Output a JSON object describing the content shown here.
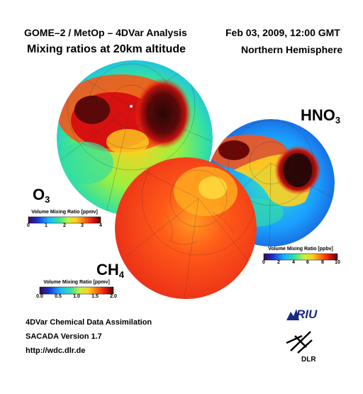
{
  "header": {
    "title_left": "GOME–2 / MetOp – 4DVar Analysis",
    "subtitle_left": "Mixing ratios at 20km altitude",
    "title_right": "Feb 03, 2009, 12:00 GMT",
    "subtitle_right": "Northern Hemisphere"
  },
  "species": {
    "o3": {
      "base": "O",
      "sub": "3"
    },
    "hno3": {
      "base": "HNO",
      "sub": "3"
    },
    "ch4": {
      "base": "CH",
      "sub": "4"
    }
  },
  "colorbars": {
    "o3": {
      "title": "Volume Mixing Ratio [ppmv]",
      "ticks": [
        "0",
        "1",
        "2",
        "3",
        "4"
      ]
    },
    "hno3": {
      "title": "Volume Mixing Ratio [ppbv]",
      "ticks": [
        "0",
        "2",
        "4",
        "6",
        "8",
        "10"
      ]
    },
    "ch4": {
      "title": "Volume Mixing Ratio [ppmv]",
      "ticks": [
        "0.0",
        "0.5",
        "1.0",
        "1.5",
        "2.0"
      ]
    }
  },
  "footer": {
    "line1": "4DVar Chemical Data Assimilation",
    "line2": "SACADA Version 1.7",
    "line3": "http://wdc.dlr.de"
  },
  "logos": {
    "riu": "RIU",
    "dlr": "DLR"
  },
  "colors": {
    "scale": [
      "#3a0a4a",
      "#1a2fd0",
      "#19b4ff",
      "#35e0a0",
      "#c8f040",
      "#ffd020",
      "#ff6a10",
      "#e01010",
      "#4a0808"
    ]
  }
}
